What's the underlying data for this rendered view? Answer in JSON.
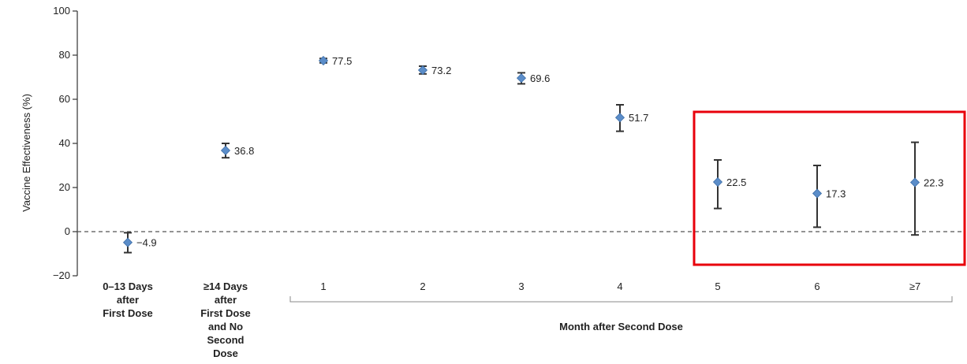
{
  "chart_data": {
    "type": "scatter",
    "ylabel": "Vaccine Effectiveness (%)",
    "xlabel": "Month after Second Dose",
    "ylim": [
      -20,
      100
    ],
    "yticks": [
      "−20",
      "0",
      "20",
      "40",
      "60",
      "80",
      "100"
    ],
    "ytick_values": [
      -20,
      0,
      20,
      40,
      60,
      80,
      100
    ],
    "categories": [
      [
        "0–13 Days",
        "after",
        "First Dose"
      ],
      [
        "≥14 Days",
        "after",
        "First Dose",
        "and No",
        "Second",
        "Dose"
      ],
      [
        "1"
      ],
      [
        "2"
      ],
      [
        "3"
      ],
      [
        "4"
      ],
      [
        "5"
      ],
      [
        "6"
      ],
      [
        "≥7"
      ]
    ],
    "values": [
      -4.9,
      36.8,
      77.5,
      73.2,
      69.6,
      51.7,
      22.5,
      17.3,
      22.3
    ],
    "labels": [
      "−4.9",
      "36.8",
      "77.5",
      "73.2",
      "69.6",
      "51.7",
      "22.5",
      "17.3",
      "22.3"
    ],
    "ci_low": [
      -9.5,
      33.5,
      76.5,
      71.5,
      67.0,
      45.5,
      10.5,
      2.0,
      -1.5
    ],
    "ci_high": [
      -0.5,
      40.0,
      78.5,
      75.0,
      72.0,
      57.5,
      32.5,
      30.0,
      40.5
    ],
    "reference_line": 0,
    "highlight": {
      "from_index": 6,
      "to_index": 8,
      "color": "#e8000b"
    },
    "marker_color": "#5b8dc9",
    "errorbar_color": "#333333"
  }
}
